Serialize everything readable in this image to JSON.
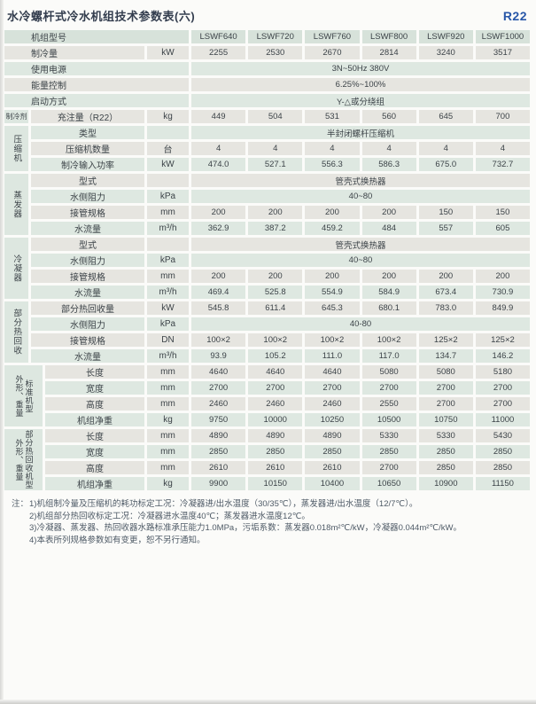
{
  "page": {
    "title": "水冷螺杆式冷水机组技术参数表(六)",
    "refrigerant_badge": "R22"
  },
  "colors": {
    "accent_blue": "#2857a8",
    "row_green": "#dee8e1",
    "row_gray": "#e6e5e0",
    "header_sage": "#d7e2da"
  },
  "table": {
    "header": {
      "label": "机组型号",
      "models": [
        "LSWF640",
        "LSWF720",
        "LSWF760",
        "LSWF800",
        "LSWF920",
        "LSWF1000"
      ]
    },
    "sections": [
      {
        "rows": [
          {
            "label": "制冷量",
            "unit": "kW",
            "values": [
              "2255",
              "2530",
              "2670",
              "2814",
              "3240",
              "3517"
            ]
          },
          {
            "label": "使用电源",
            "merged": "3N~50Hz 380V"
          },
          {
            "label": "能量控制",
            "merged": "6.25%~100%"
          },
          {
            "label": "启动方式",
            "merged": "Y-△或分绕组"
          }
        ]
      },
      {
        "group": "制冷剂",
        "rows": [
          {
            "label": "充注量（R22）",
            "unit": "kg",
            "values": [
              "449",
              "504",
              "531",
              "560",
              "645",
              "700"
            ]
          }
        ]
      },
      {
        "group": "压缩机",
        "rows": [
          {
            "label": "类型",
            "unit": "",
            "merged": "半封闭螺杆压缩机"
          },
          {
            "label": "压缩机数量",
            "unit": "台",
            "values": [
              "4",
              "4",
              "4",
              "4",
              "4",
              "4"
            ]
          },
          {
            "label": "制冷输入功率",
            "unit": "kW",
            "values": [
              "474.0",
              "527.1",
              "556.3",
              "586.3",
              "675.0",
              "732.7"
            ]
          }
        ]
      },
      {
        "group": "蒸发器",
        "rows": [
          {
            "label": "型式",
            "unit": "",
            "merged": "管壳式换热器"
          },
          {
            "label": "水侧阻力",
            "unit": "kPa",
            "merged": "40~80"
          },
          {
            "label": "接管规格",
            "unit": "mm",
            "values": [
              "200",
              "200",
              "200",
              "200",
              "150",
              "150"
            ]
          },
          {
            "label": "水流量",
            "unit": "m³/h",
            "values": [
              "362.9",
              "387.2",
              "459.2",
              "484",
              "557",
              "605"
            ]
          }
        ]
      },
      {
        "group": "冷凝器",
        "rows": [
          {
            "label": "型式",
            "unit": "",
            "merged": "管壳式换热器"
          },
          {
            "label": "水侧阻力",
            "unit": "kPa",
            "merged": "40~80"
          },
          {
            "label": "接管规格",
            "unit": "mm",
            "values": [
              "200",
              "200",
              "200",
              "200",
              "200",
              "200"
            ]
          },
          {
            "label": "水流量",
            "unit": "m³/h",
            "values": [
              "469.4",
              "525.8",
              "554.9",
              "584.9",
              "673.4",
              "730.9"
            ]
          }
        ]
      },
      {
        "group": "部分热回收",
        "rows": [
          {
            "label": "部分热回收量",
            "unit": "kW",
            "values": [
              "545.8",
              "611.4",
              "645.3",
              "680.1",
              "783.0",
              "849.9"
            ]
          },
          {
            "label": "水侧阻力",
            "unit": "kPa",
            "merged": "40-80"
          },
          {
            "label": "接管规格",
            "unit": "DN",
            "values": [
              "100×2",
              "100×2",
              "100×2",
              "100×2",
              "125×2",
              "125×2"
            ]
          },
          {
            "label": "水流量",
            "unit": "m³/h",
            "values": [
              "93.9",
              "105.2",
              "111.0",
              "117.0",
              "134.7",
              "146.2"
            ]
          }
        ]
      },
      {
        "group": "外形、重量",
        "group2": "标准机型",
        "rows": [
          {
            "label": "长度",
            "unit": "mm",
            "values": [
              "4640",
              "4640",
              "4640",
              "5080",
              "5080",
              "5180"
            ]
          },
          {
            "label": "宽度",
            "unit": "mm",
            "values": [
              "2700",
              "2700",
              "2700",
              "2700",
              "2700",
              "2700"
            ]
          },
          {
            "label": "高度",
            "unit": "mm",
            "values": [
              "2460",
              "2460",
              "2460",
              "2550",
              "2700",
              "2700"
            ]
          },
          {
            "label": "机组净重",
            "unit": "kg",
            "values": [
              "9750",
              "10000",
              "10250",
              "10500",
              "10750",
              "11000"
            ]
          }
        ]
      },
      {
        "group": "外形、重量",
        "group2": "部分热回收机型",
        "rows": [
          {
            "label": "长度",
            "unit": "mm",
            "values": [
              "4890",
              "4890",
              "4890",
              "5330",
              "5330",
              "5430"
            ]
          },
          {
            "label": "宽度",
            "unit": "mm",
            "values": [
              "2850",
              "2850",
              "2850",
              "2850",
              "2850",
              "2850"
            ]
          },
          {
            "label": "高度",
            "unit": "mm",
            "values": [
              "2610",
              "2610",
              "2610",
              "2700",
              "2850",
              "2850"
            ]
          },
          {
            "label": "机组净重",
            "unit": "kg",
            "values": [
              "9900",
              "10150",
              "10400",
              "10650",
              "10900",
              "11150"
            ]
          }
        ]
      }
    ]
  },
  "notes": {
    "prefix": "注：",
    "items": [
      "1)机组制冷量及压缩机的耗功标定工况：冷凝器进/出水温度（30/35℃），蒸发器进/出水温度（12/7℃）。",
      "2)机组部分热回收标定工况：冷凝器进水温度40℃；蒸发器进水温度12℃。",
      "3)冷凝器、蒸发器、热回收器水路标准承压能力1.0MPa，污垢系数：蒸发器0.018m²℃/kW，冷凝器0.044m²℃/kW。",
      "4)本表所列规格参数如有变更，恕不另行通知。"
    ]
  }
}
